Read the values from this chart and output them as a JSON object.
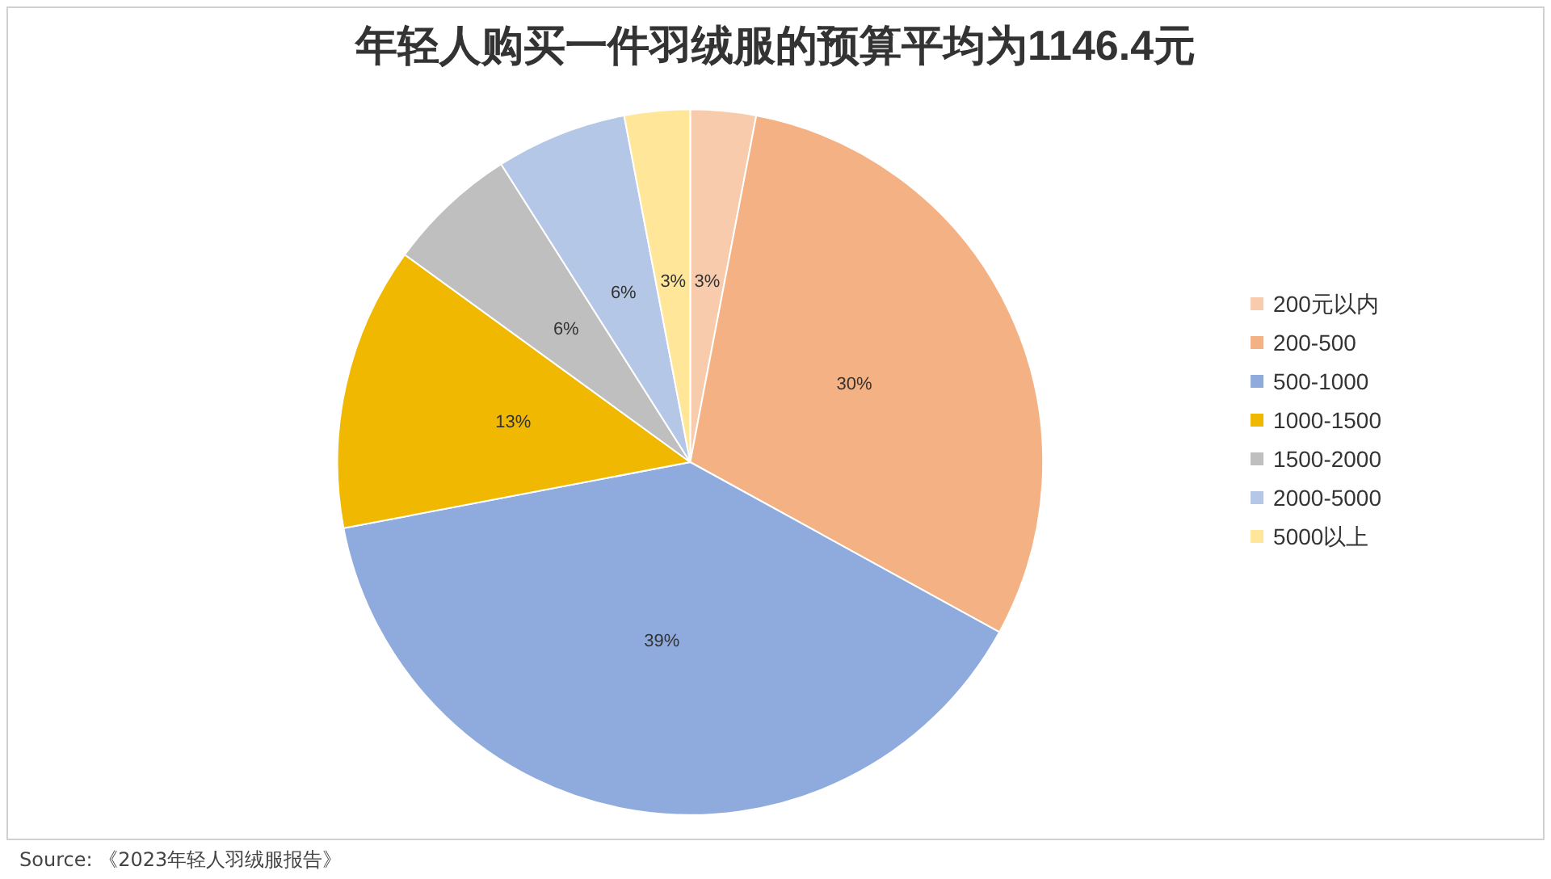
{
  "chart_data": {
    "type": "pie",
    "title": "年轻人购买一件羽绒服的预算平均为1146.4元",
    "categories": [
      "200元以内",
      "200-500",
      "500-1000",
      "1000-1500",
      "1500-2000",
      "2000-5000",
      "5000以上"
    ],
    "values": [
      3,
      30,
      39,
      13,
      6,
      6,
      3
    ],
    "colors": [
      "#f8cbad",
      "#f4b183",
      "#8faadc",
      "#f0b800",
      "#bfbfbf",
      "#b4c7e7",
      "#ffe699"
    ],
    "value_labels": [
      "3%",
      "30%",
      "39%",
      "13%",
      "6%",
      "6%",
      "3%"
    ],
    "legend": "right",
    "annotations": [
      "Source: 《2023年轻人羽绒服报告》"
    ]
  }
}
